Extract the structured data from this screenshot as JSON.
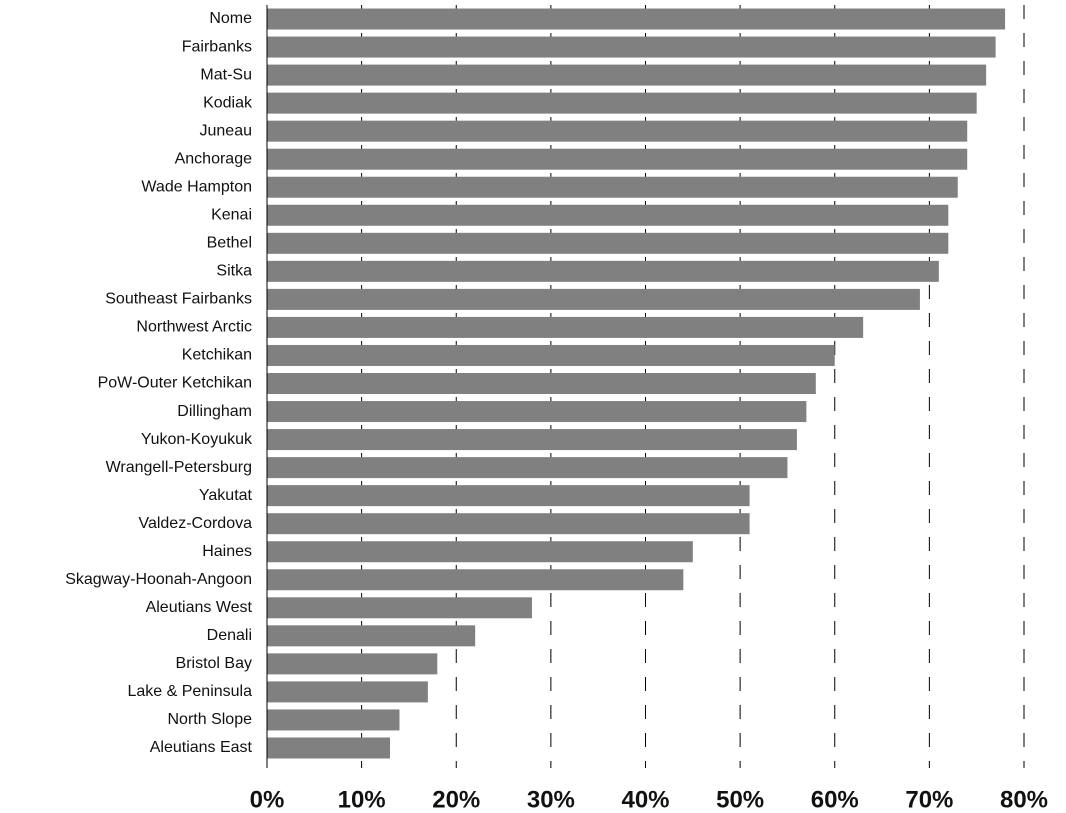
{
  "chart_data": {
    "type": "barh",
    "categories": [
      "Nome",
      "Fairbanks",
      "Mat-Su",
      "Kodiak",
      "Juneau",
      "Anchorage",
      "Wade Hampton",
      "Kenai",
      "Bethel",
      "Sitka",
      "Southeast Fairbanks",
      "Northwest Arctic",
      "Ketchikan",
      "PoW-Outer Ketchikan",
      "Dillingham",
      "Yukon-Koyukuk",
      "Wrangell-Petersburg",
      "Yakutat",
      "Valdez-Cordova",
      "Haines",
      "Skagway-Hoonah-Angoon",
      "Aleutians West",
      "Denali",
      "Bristol Bay",
      "Lake & Peninsula",
      "North Slope",
      "Aleutians East"
    ],
    "values": [
      78,
      77,
      76,
      75,
      74,
      74,
      73,
      72,
      72,
      71,
      69,
      63,
      60,
      58,
      57,
      56,
      55,
      51,
      51,
      45,
      44,
      28,
      22,
      18,
      17,
      14,
      13
    ],
    "color": "#808080",
    "xlim": [
      0,
      80
    ],
    "xticks": [
      {
        "value": 0,
        "label": "0%"
      },
      {
        "value": 10,
        "label": "10%"
      },
      {
        "value": 20,
        "label": "20%"
      },
      {
        "value": 30,
        "label": "30%"
      },
      {
        "value": 40,
        "label": "40%"
      },
      {
        "value": 50,
        "label": "50%"
      },
      {
        "value": 60,
        "label": "60%"
      },
      {
        "value": 70,
        "label": "70%"
      },
      {
        "value": 80,
        "label": "80%"
      }
    ],
    "grid": true
  }
}
